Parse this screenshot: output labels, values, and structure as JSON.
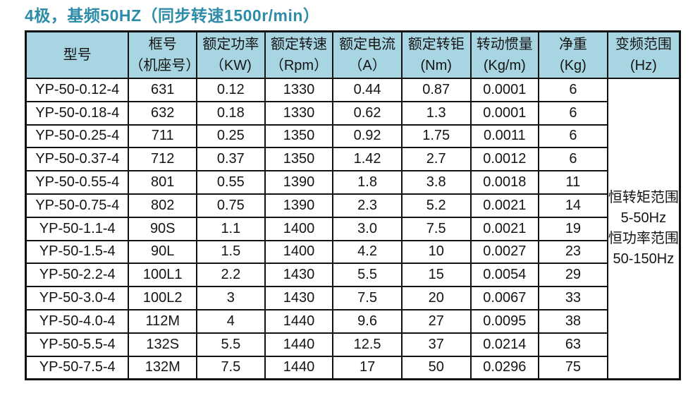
{
  "title": "4极，基频50HZ（同步转速1500r/min）",
  "colors": {
    "title_text": "#2d8ca8",
    "header_bg": "#a7d6e2",
    "border": "#121212",
    "body_bg": "#ffffff"
  },
  "table": {
    "headers": [
      {
        "line1": "型号",
        "line2": ""
      },
      {
        "line1": "框号",
        "line2": "（机座号）"
      },
      {
        "line1": "额定功率",
        "line2": "（KW)"
      },
      {
        "line1": "额定转速",
        "line2": "（Rpm）"
      },
      {
        "line1": "额定电流",
        "line2": "（A）"
      },
      {
        "line1": "额定转钜",
        "line2": "(Nm)"
      },
      {
        "line1": "转动惯量",
        "line2": "(Kg/m)"
      },
      {
        "line1": "净重",
        "line2": "(Kg)"
      },
      {
        "line1": "变频范围",
        "line2": "(Hz)"
      }
    ],
    "rows": [
      [
        "YP-50-0.12-4",
        "631",
        "0.12",
        "1330",
        "0.44",
        "0.87",
        "0.0001",
        "6"
      ],
      [
        "YP-50-0.18-4",
        "632",
        "0.18",
        "1330",
        "0.62",
        "1.3",
        "0.0001",
        "6"
      ],
      [
        "YP-50-0.25-4",
        "711",
        "0.25",
        "1350",
        "0.92",
        "1.75",
        "0.0011",
        "6"
      ],
      [
        "YP-50-0.37-4",
        "712",
        "0.37",
        "1350",
        "1.42",
        "2.7",
        "0.0012",
        "6"
      ],
      [
        "YP-50-0.55-4",
        "801",
        "0.55",
        "1390",
        "1.8",
        "3.8",
        "0.0018",
        "11"
      ],
      [
        "YP-50-0.75-4",
        "802",
        "0.75",
        "1390",
        "2.3",
        "5.2",
        "0.0021",
        "14"
      ],
      [
        "YP-50-1.1-4",
        "90S",
        "1.1",
        "1400",
        "3.0",
        "7.5",
        "0.0021",
        "19"
      ],
      [
        "YP-50-1.5-4",
        "90L",
        "1.5",
        "1400",
        "4.2",
        "10",
        "0.0027",
        "23"
      ],
      [
        "YP-50-2.2-4",
        "100L1",
        "2.2",
        "1430",
        "5.5",
        "15",
        "0.0054",
        "29"
      ],
      [
        "YP-50-3.0-4",
        "100L2",
        "3",
        "1430",
        "7.5",
        "20",
        "0.0067",
        "33"
      ],
      [
        "YP-50-4.0-4",
        "112M",
        "4",
        "1440",
        "9.6",
        "27",
        "0.0095",
        "38"
      ],
      [
        "YP-50-5.5-4",
        "132S",
        "5.5",
        "1440",
        "12.5",
        "37",
        "0.0214",
        "63"
      ],
      [
        "YP-50-7.5-4",
        "132M",
        "7.5",
        "1440",
        "17",
        "50",
        "0.0296",
        "75"
      ]
    ],
    "freq_range": {
      "lines": [
        "恒转矩范围",
        "5-50Hz",
        "恒功率范围",
        "50-150Hz"
      ]
    }
  }
}
